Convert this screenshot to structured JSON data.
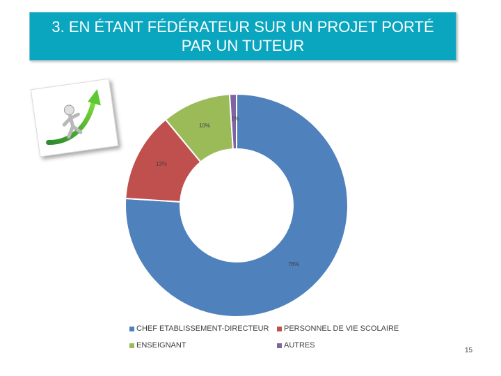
{
  "slide": {
    "title": "3. EN ÉTANT  FÉDÉRATEUR SUR UN PROJET PORTÉ  PAR UN TUTEUR",
    "page_number": "15"
  },
  "chart_data": {
    "type": "pie",
    "style": "doughnut",
    "title": "",
    "legend_placement": "bottom",
    "slices": [
      {
        "label": "CHEF ETABLISSEMENT-DIRECTEUR",
        "value": 76,
        "display": "76%",
        "color": "#4f81bd"
      },
      {
        "label": "PERSONNEL DE VIE SCOLAIRE",
        "value": 13,
        "display": "13%",
        "color": "#c0504d"
      },
      {
        "label": "ENSEIGNANT",
        "value": 10,
        "display": "10%",
        "color": "#9bbb59"
      },
      {
        "label": "AUTRES",
        "value": 1,
        "display": "1%",
        "color": "#8064a2"
      }
    ],
    "legend_order": [
      "CHEF ETABLISSEMENT-DIRECTEUR",
      "PERSONNEL DE VIE SCOLAIRE",
      "ENSEIGNANT",
      "AUTRES"
    ]
  },
  "illustration": {
    "icon": "climbing-figure-on-green-arrow"
  }
}
